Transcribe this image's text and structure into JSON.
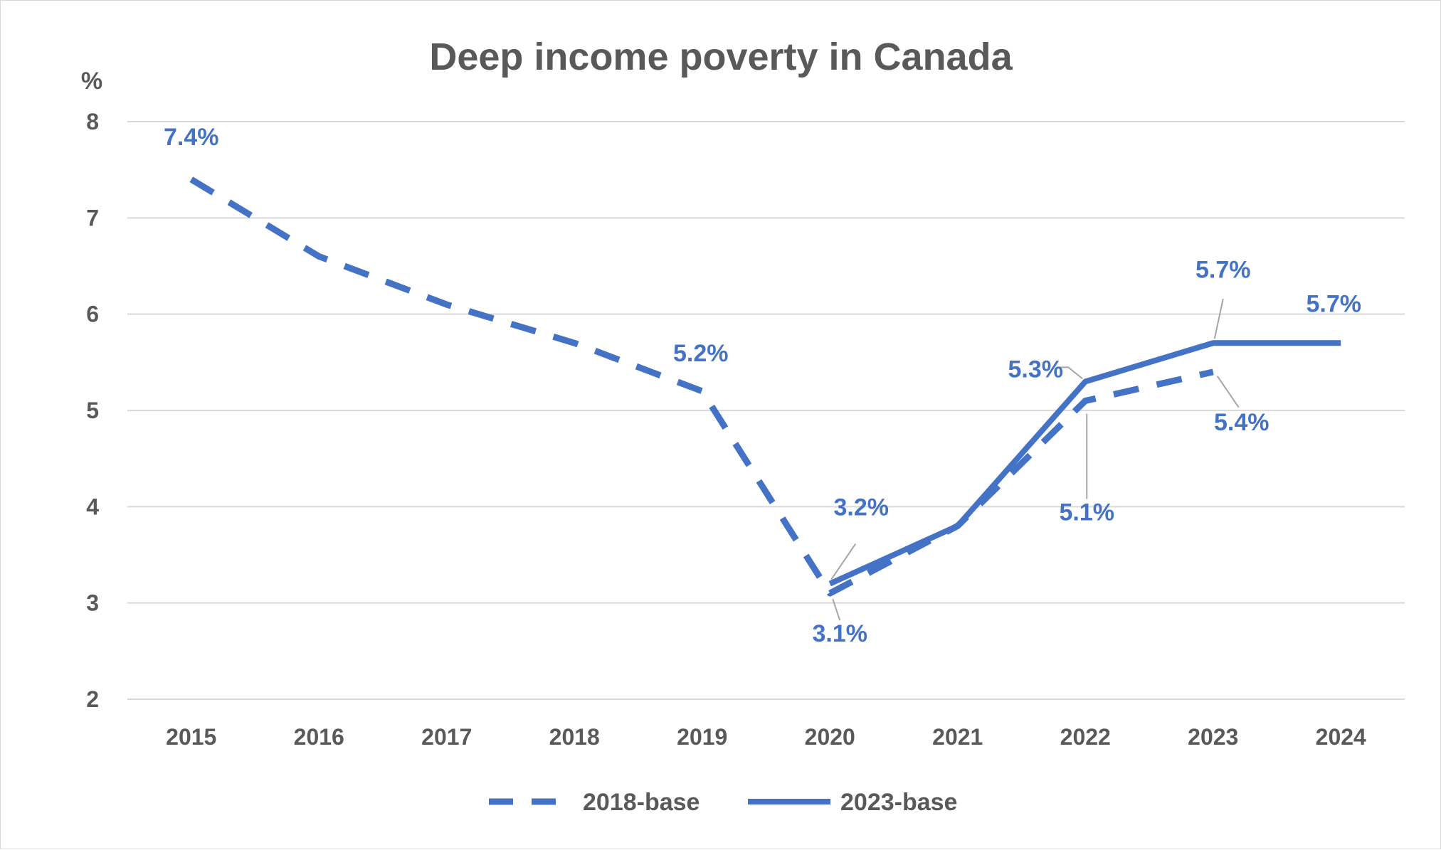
{
  "chart_data": {
    "type": "line",
    "title": "Deep income poverty in Canada",
    "ylabel": "%",
    "xlabel": "",
    "ylim": [
      2,
      8
    ],
    "yticks": [
      2,
      3,
      4,
      5,
      6,
      7,
      8
    ],
    "categories": [
      "2015",
      "2016",
      "2017",
      "2018",
      "2019",
      "2020",
      "2021",
      "2022",
      "2023",
      "2024"
    ],
    "grid": true,
    "legend_position": "bottom",
    "color": "#4472c4",
    "series": [
      {
        "name": "2018-base",
        "style": "dashed",
        "values": [
          7.4,
          6.6,
          6.1,
          5.7,
          5.2,
          3.1,
          3.8,
          5.1,
          5.4,
          null
        ]
      },
      {
        "name": "2023-base",
        "style": "solid",
        "values": [
          null,
          null,
          null,
          null,
          null,
          3.2,
          3.8,
          5.3,
          5.7,
          5.7
        ]
      }
    ],
    "data_labels": [
      {
        "series": "2018-base",
        "category": "2015",
        "text": "7.4%"
      },
      {
        "series": "2018-base",
        "category": "2019",
        "text": "5.2%"
      },
      {
        "series": "2018-base",
        "category": "2020",
        "text": "3.1%"
      },
      {
        "series": "2018-base",
        "category": "2022",
        "text": "5.1%"
      },
      {
        "series": "2018-base",
        "category": "2023",
        "text": "5.4%"
      },
      {
        "series": "2023-base",
        "category": "2020",
        "text": "3.2%"
      },
      {
        "series": "2023-base",
        "category": "2022",
        "text": "5.3%"
      },
      {
        "series": "2023-base",
        "category": "2023",
        "text": "5.7%"
      },
      {
        "series": "2023-base",
        "category": "2024",
        "text": "5.7%"
      }
    ]
  }
}
